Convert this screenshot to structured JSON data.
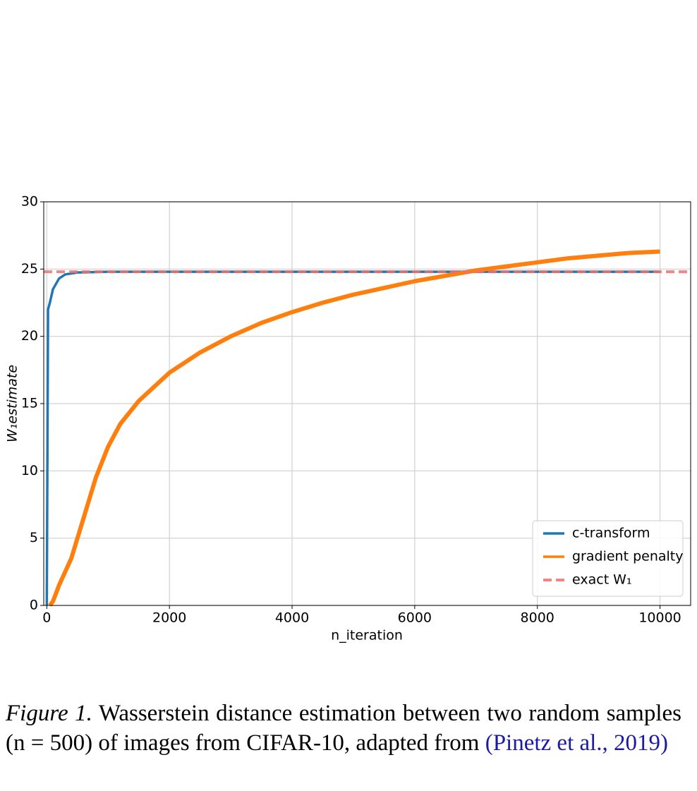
{
  "chart_data": {
    "type": "line",
    "xlabel": "n_iteration",
    "ylabel": "W₁estimate",
    "xlim": [
      -50,
      10500
    ],
    "ylim": [
      0,
      30
    ],
    "xticks": [
      0,
      2000,
      4000,
      6000,
      8000,
      10000
    ],
    "yticks": [
      0,
      5,
      10,
      15,
      20,
      25,
      30
    ],
    "grid": true,
    "legend": "lower right",
    "series": [
      {
        "name": "c-transform",
        "color": "#1f77b4",
        "linestyle": "solid",
        "x": [
          0,
          20,
          50,
          100,
          200,
          300,
          500,
          1000,
          10000
        ],
        "values": [
          0,
          22,
          22.5,
          23.5,
          24.3,
          24.6,
          24.75,
          24.8,
          24.8
        ]
      },
      {
        "name": "gradient penalty",
        "color": "#ff7f0e",
        "linestyle": "solid",
        "x": [
          50,
          100,
          200,
          400,
          600,
          800,
          1000,
          1200,
          1500,
          2000,
          2500,
          3000,
          3500,
          4000,
          4500,
          5000,
          5500,
          6000,
          6500,
          7000,
          7500,
          8000,
          8500,
          9000,
          9500,
          10000
        ],
        "values": [
          0,
          0.3,
          1.5,
          3.5,
          6.5,
          9.5,
          11.8,
          13.5,
          15.2,
          17.3,
          18.8,
          20.0,
          21.0,
          21.8,
          22.5,
          23.1,
          23.6,
          24.1,
          24.5,
          24.9,
          25.2,
          25.5,
          25.8,
          26.0,
          26.2,
          26.3
        ]
      },
      {
        "name": "exact W₁",
        "color": "#f07070",
        "linestyle": "dashed",
        "x": [
          -50,
          10500
        ],
        "values": [
          24.8,
          24.8
        ]
      }
    ]
  },
  "caption": {
    "label": "Figure 1.",
    "text": "Wasserstein distance estimation between two random samples (n = 500) of images from CIFAR-10, adapted from",
    "citation": "(Pinetz et al., 2019)"
  }
}
